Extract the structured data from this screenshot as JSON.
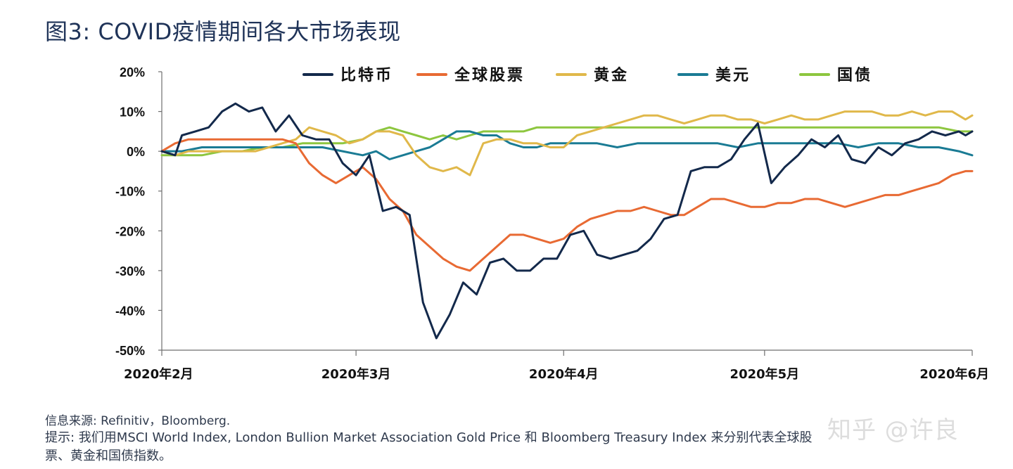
{
  "title": "图3: COVID疫情期间各大市场表现",
  "source_note": "信息来源: Refinitiv，Bloomberg.",
  "hint_line1": "提示: 我们用MSCI World Index, London Bullion Market Association Gold Price 和 Bloomberg Treasury Index 来分别代表全球股",
  "hint_line2": "票、黄金和国债指数。",
  "watermark": "知乎 @许良",
  "chart_data": {
    "type": "line",
    "title": "图3: COVID疫情期间各大市场表现",
    "xlabel": "",
    "ylabel": "",
    "ylim": [
      -50,
      20
    ],
    "yticks": [
      20,
      10,
      0,
      -10,
      -20,
      -30,
      -40,
      -50
    ],
    "ytick_labels": [
      "20%",
      "10%",
      "0%",
      "-10%",
      "-20%",
      "-30%",
      "-40%",
      "-50%"
    ],
    "xlim": [
      0,
      121
    ],
    "xticks": [
      0,
      29,
      60,
      90,
      121
    ],
    "xtick_labels": [
      "2020年2月",
      "2020年3月",
      "2020年4月",
      "2020年5月",
      "2020年6月"
    ],
    "x_unit": "days since 2020-02-01",
    "legend_position": "top",
    "series": [
      {
        "name": "比特币",
        "color": "#13294b",
        "x": [
          0,
          2,
          3,
          5,
          7,
          9,
          11,
          13,
          15,
          17,
          19,
          21,
          23,
          25,
          27,
          29,
          31,
          33,
          35,
          37,
          39,
          41,
          43,
          45,
          47,
          49,
          51,
          53,
          55,
          57,
          59,
          61,
          63,
          65,
          67,
          69,
          71,
          73,
          75,
          77,
          79,
          81,
          83,
          85,
          87,
          89,
          91,
          93,
          95,
          97,
          99,
          101,
          103,
          105,
          107,
          109,
          111,
          113,
          115,
          117,
          119,
          120,
          121
        ],
        "y": [
          0,
          -1,
          4,
          5,
          6,
          10,
          12,
          10,
          11,
          5,
          9,
          4,
          3,
          3,
          -3,
          -6,
          -1,
          -15,
          -14,
          -16,
          -38,
          -47,
          -41,
          -33,
          -36,
          -28,
          -27,
          -30,
          -30,
          -27,
          -27,
          -21,
          -20,
          -26,
          -27,
          -26,
          -25,
          -22,
          -17,
          -16,
          -5,
          -4,
          -4,
          -2,
          3,
          7,
          -8,
          -4,
          -1,
          3,
          1,
          4,
          -2,
          -3,
          1,
          -1,
          2,
          3,
          5,
          4,
          5,
          4,
          5
        ]
      },
      {
        "name": "全球股票",
        "color": "#e86a33",
        "x": [
          0,
          2,
          4,
          6,
          8,
          10,
          12,
          14,
          16,
          18,
          20,
          22,
          24,
          26,
          28,
          30,
          32,
          34,
          36,
          38,
          40,
          42,
          44,
          46,
          48,
          50,
          52,
          54,
          56,
          58,
          60,
          62,
          64,
          66,
          68,
          70,
          72,
          74,
          76,
          78,
          80,
          82,
          84,
          86,
          88,
          90,
          92,
          94,
          96,
          98,
          100,
          102,
          104,
          106,
          108,
          110,
          112,
          114,
          116,
          118,
          120,
          121
        ],
        "y": [
          0,
          2,
          3,
          3,
          3,
          3,
          3,
          3,
          3,
          3,
          2,
          -3,
          -6,
          -8,
          -6,
          -4,
          -7,
          -12,
          -15,
          -21,
          -24,
          -27,
          -29,
          -30,
          -27,
          -24,
          -21,
          -21,
          -22,
          -23,
          -22,
          -19,
          -17,
          -16,
          -15,
          -15,
          -14,
          -15,
          -16,
          -16,
          -14,
          -12,
          -12,
          -13,
          -14,
          -14,
          -13,
          -13,
          -12,
          -12,
          -13,
          -14,
          -13,
          -12,
          -11,
          -11,
          -10,
          -9,
          -8,
          -6,
          -5,
          -5
        ]
      },
      {
        "name": "黄金",
        "color": "#e0b84a",
        "x": [
          0,
          2,
          4,
          6,
          8,
          10,
          12,
          14,
          16,
          18,
          20,
          22,
          24,
          26,
          28,
          30,
          32,
          34,
          36,
          38,
          40,
          42,
          44,
          46,
          48,
          50,
          52,
          54,
          56,
          58,
          60,
          62,
          64,
          66,
          68,
          70,
          72,
          74,
          76,
          78,
          80,
          82,
          84,
          86,
          88,
          90,
          92,
          94,
          96,
          98,
          100,
          102,
          104,
          106,
          108,
          110,
          112,
          114,
          116,
          118,
          120,
          121
        ],
        "y": [
          0,
          -1,
          0,
          0,
          0,
          0,
          0,
          0,
          1,
          2,
          3,
          6,
          5,
          4,
          2,
          3,
          5,
          5,
          4,
          -1,
          -4,
          -5,
          -4,
          -6,
          2,
          3,
          3,
          2,
          2,
          1,
          1,
          4,
          5,
          6,
          7,
          8,
          9,
          9,
          8,
          7,
          8,
          9,
          9,
          8,
          8,
          7,
          8,
          9,
          8,
          8,
          9,
          10,
          10,
          10,
          9,
          9,
          10,
          9,
          10,
          10,
          8,
          9
        ]
      },
      {
        "name": "美元",
        "color": "#1a7b94",
        "x": [
          0,
          3,
          6,
          9,
          12,
          15,
          18,
          21,
          24,
          27,
          30,
          32,
          34,
          36,
          38,
          40,
          42,
          44,
          46,
          48,
          50,
          52,
          54,
          56,
          58,
          60,
          62,
          65,
          68,
          71,
          74,
          77,
          80,
          83,
          86,
          89,
          92,
          95,
          98,
          101,
          104,
          107,
          110,
          113,
          116,
          119,
          121
        ],
        "y": [
          0,
          0,
          1,
          1,
          1,
          1,
          1,
          1,
          1,
          0,
          -1,
          0,
          -2,
          -1,
          0,
          1,
          3,
          5,
          5,
          4,
          4,
          2,
          1,
          1,
          2,
          2,
          2,
          2,
          1,
          2,
          2,
          2,
          2,
          2,
          1,
          2,
          2,
          2,
          2,
          2,
          1,
          2,
          2,
          1,
          1,
          0,
          -1
        ]
      },
      {
        "name": "国债",
        "color": "#8dc63f",
        "x": [
          0,
          3,
          6,
          9,
          12,
          15,
          18,
          21,
          24,
          27,
          30,
          32,
          34,
          36,
          38,
          40,
          42,
          44,
          46,
          48,
          50,
          52,
          54,
          56,
          58,
          60,
          62,
          65,
          68,
          71,
          74,
          77,
          80,
          83,
          86,
          89,
          92,
          95,
          98,
          101,
          104,
          107,
          110,
          113,
          116,
          119,
          121
        ],
        "y": [
          -1,
          -1,
          -1,
          0,
          0,
          1,
          1,
          2,
          2,
          2,
          3,
          5,
          6,
          5,
          4,
          3,
          4,
          3,
          4,
          5,
          5,
          5,
          5,
          6,
          6,
          6,
          6,
          6,
          6,
          6,
          6,
          6,
          6,
          6,
          6,
          6,
          6,
          6,
          6,
          6,
          6,
          6,
          6,
          6,
          6,
          5,
          5
        ]
      }
    ]
  }
}
